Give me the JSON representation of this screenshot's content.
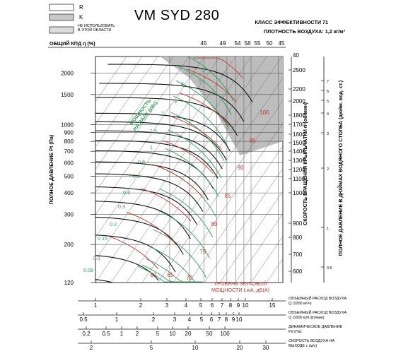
{
  "chart_data": {
    "type": "line",
    "title": "VM SYD 280",
    "efficiency_class": "КЛАСС ЭФФЕКТИВНОСТИ 71",
    "air_density": "ПЛОТНОСТЬ ВОЗДУХА: 1,2 кг/м³",
    "legend": [
      {
        "key": "R",
        "label": "R",
        "color": "#ffffff"
      },
      {
        "key": "K",
        "label": "K",
        "color": "#c8c8c8"
      },
      {
        "key": "NA",
        "label": "НЕ ИСПОЛЬЗОВАТЬ В ЭТОЙ ОБЛАСТИ",
        "color": "#dcdcdc"
      }
    ],
    "efficiency_label": "ОБЩИЙ КПД η (%)",
    "efficiency_values": [
      "45",
      "49",
      "54",
      "58",
      "55",
      "50",
      "45"
    ],
    "y_left": {
      "label": "ПОЛНОЕ ДАВЛЕНИЕ Pt (Па)",
      "scale": "log",
      "range": [
        120,
        2500
      ],
      "ticks": [
        "2000",
        "1500",
        "1000",
        "900",
        "800",
        "700",
        "600",
        "500",
        "400",
        "300",
        "200",
        "120"
      ]
    },
    "y_right_speed": {
      "label": "СКОРОСТЬ ВРАЩЕНИЯ КРЫЛЬЧАТКИ n (об/мин)",
      "ticks": [
        "2500",
        "2200",
        "2000",
        "1800",
        "1700",
        "1600",
        "1500",
        "1400",
        "1300",
        "1200",
        "1100",
        "1000",
        "900",
        "800",
        "700",
        "600"
      ],
      "top": "40"
    },
    "y_right_inches": {
      "label": "ПОЛНОЕ ДАВЛЕНИЕ В ДЮЙМАХ ВОДЯНОГО СТОЛБА (дюйм. вод. ст.)",
      "ticks": [
        "7",
        "6",
        "5",
        "4",
        "3",
        "2",
        "1",
        "0.5"
      ]
    },
    "x_axes": [
      {
        "label": "ОБЪЕМНЫЙ РАСХОД ВОЗДУХА Q (1000 м³/ч)",
        "ticks": [
          "1",
          "2",
          "3",
          "4",
          "5",
          "6",
          "7",
          "8",
          "9",
          "10",
          "15"
        ]
      },
      {
        "label": "ОБЪЕМНЫЙ РАСХОД ВОЗДУХА Q (1000 куб.фт/мин)",
        "ticks": [
          "0.5",
          "1",
          "2",
          "3",
          "4",
          "5",
          "6",
          "7",
          "8",
          "9",
          "10"
        ]
      },
      {
        "label": "ДИНАМИЧЕСКОЕ ДАВЛЕНИЕ Pd (Па)",
        "ticks": [
          "0.2",
          "0.5",
          "1",
          "2",
          "5",
          "10",
          "20",
          "50",
          "100"
        ]
      },
      {
        "label": "СКОРОСТЬ ВОЗДУХА НА ВЫХОДЕ с (м/с)",
        "ticks": [
          "2",
          "5",
          "10",
          "20",
          "30"
        ]
      }
    ],
    "shaft_power": {
      "label": "МОЩНОСТЬ НА ВАЛУ (кВт)",
      "values": [
        "6",
        "5",
        "4",
        "3",
        "2",
        "1.5",
        "1",
        "0.8",
        "0.6",
        "0.4",
        "0.3",
        "0.2",
        "0.15",
        "0.1",
        "0.08"
      ]
    },
    "sound_level": {
      "label": "УРОВЕНЬ ЗВУКОВОЙ МОЩНОСТИ LwA, дБ(А)",
      "values": [
        "60",
        "65",
        "70",
        "75",
        "80",
        "85",
        "90",
        "95",
        "100"
      ]
    },
    "colors": {
      "power": "#2e9e5b",
      "sound": "#c0392b",
      "curve": "#111111",
      "grid": "#555555",
      "shade": "#bdbdbd"
    }
  }
}
